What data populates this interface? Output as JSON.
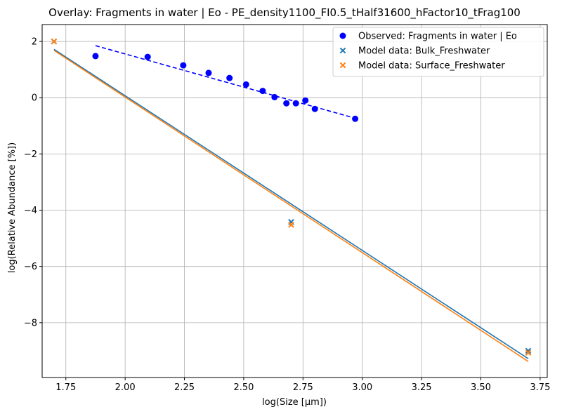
{
  "chart_data": {
    "type": "scatter",
    "title": "Overlay: Fragments in water | Eo - PE_density1100_FI0.5_tHalf31600_hFactor10_tFrag100",
    "xlabel": "log(Size [µm])",
    "ylabel": "log(Relative Abundance [%])",
    "xlim": [
      1.65,
      3.78
    ],
    "ylim": [
      -9.95,
      2.6
    ],
    "x_ticks": [
      1.75,
      2.0,
      2.25,
      2.5,
      2.75,
      3.0,
      3.25,
      3.5,
      3.75
    ],
    "x_tick_labels": [
      "1.75",
      "2.00",
      "2.25",
      "2.50",
      "2.75",
      "3.00",
      "3.25",
      "3.50",
      "3.75"
    ],
    "y_ticks": [
      -8,
      -6,
      -4,
      -2,
      0,
      2
    ],
    "y_tick_labels": [
      "−8",
      "−6",
      "−4",
      "−2",
      "0",
      "2"
    ],
    "grid": true,
    "legend_position": "top-right",
    "series": [
      {
        "name": "Observed: Fragments in water | Eo",
        "marker": "circle",
        "color": "#0000ff",
        "x": [
          1.875,
          2.095,
          2.245,
          2.352,
          2.44,
          2.51,
          2.58,
          2.63,
          2.68,
          2.72,
          2.76,
          2.8,
          2.97
        ],
        "y": [
          1.48,
          1.45,
          1.15,
          0.88,
          0.7,
          0.47,
          0.24,
          0.02,
          -0.2,
          -0.2,
          -0.1,
          -0.4,
          -0.75
        ]
      },
      {
        "name": "Model data: Bulk_Freshwater",
        "marker": "x",
        "color": "#1f77b4",
        "x": [
          1.7,
          2.7,
          3.7
        ],
        "y": [
          2.0,
          -4.42,
          -9.0
        ]
      },
      {
        "name": "Model data: Surface_Freshwater",
        "marker": "x",
        "color": "#ff7f0e",
        "x": [
          1.7,
          2.7,
          3.7
        ],
        "y": [
          2.0,
          -4.52,
          -9.07
        ]
      }
    ],
    "fit_lines": [
      {
        "series": "Observed: Fragments in water | Eo",
        "color": "#0000ff",
        "style": "dashed",
        "x": [
          1.875,
          2.97
        ],
        "y": [
          1.85,
          -0.73
        ]
      },
      {
        "series": "Model data: Bulk_Freshwater",
        "color": "#1f77b4",
        "style": "solid",
        "x": [
          1.7,
          3.7
        ],
        "y": [
          1.72,
          -9.28
        ]
      },
      {
        "series": "Model data: Surface_Freshwater",
        "color": "#ff7f0e",
        "style": "solid",
        "x": [
          1.7,
          3.7
        ],
        "y": [
          1.68,
          -9.38
        ]
      }
    ]
  }
}
